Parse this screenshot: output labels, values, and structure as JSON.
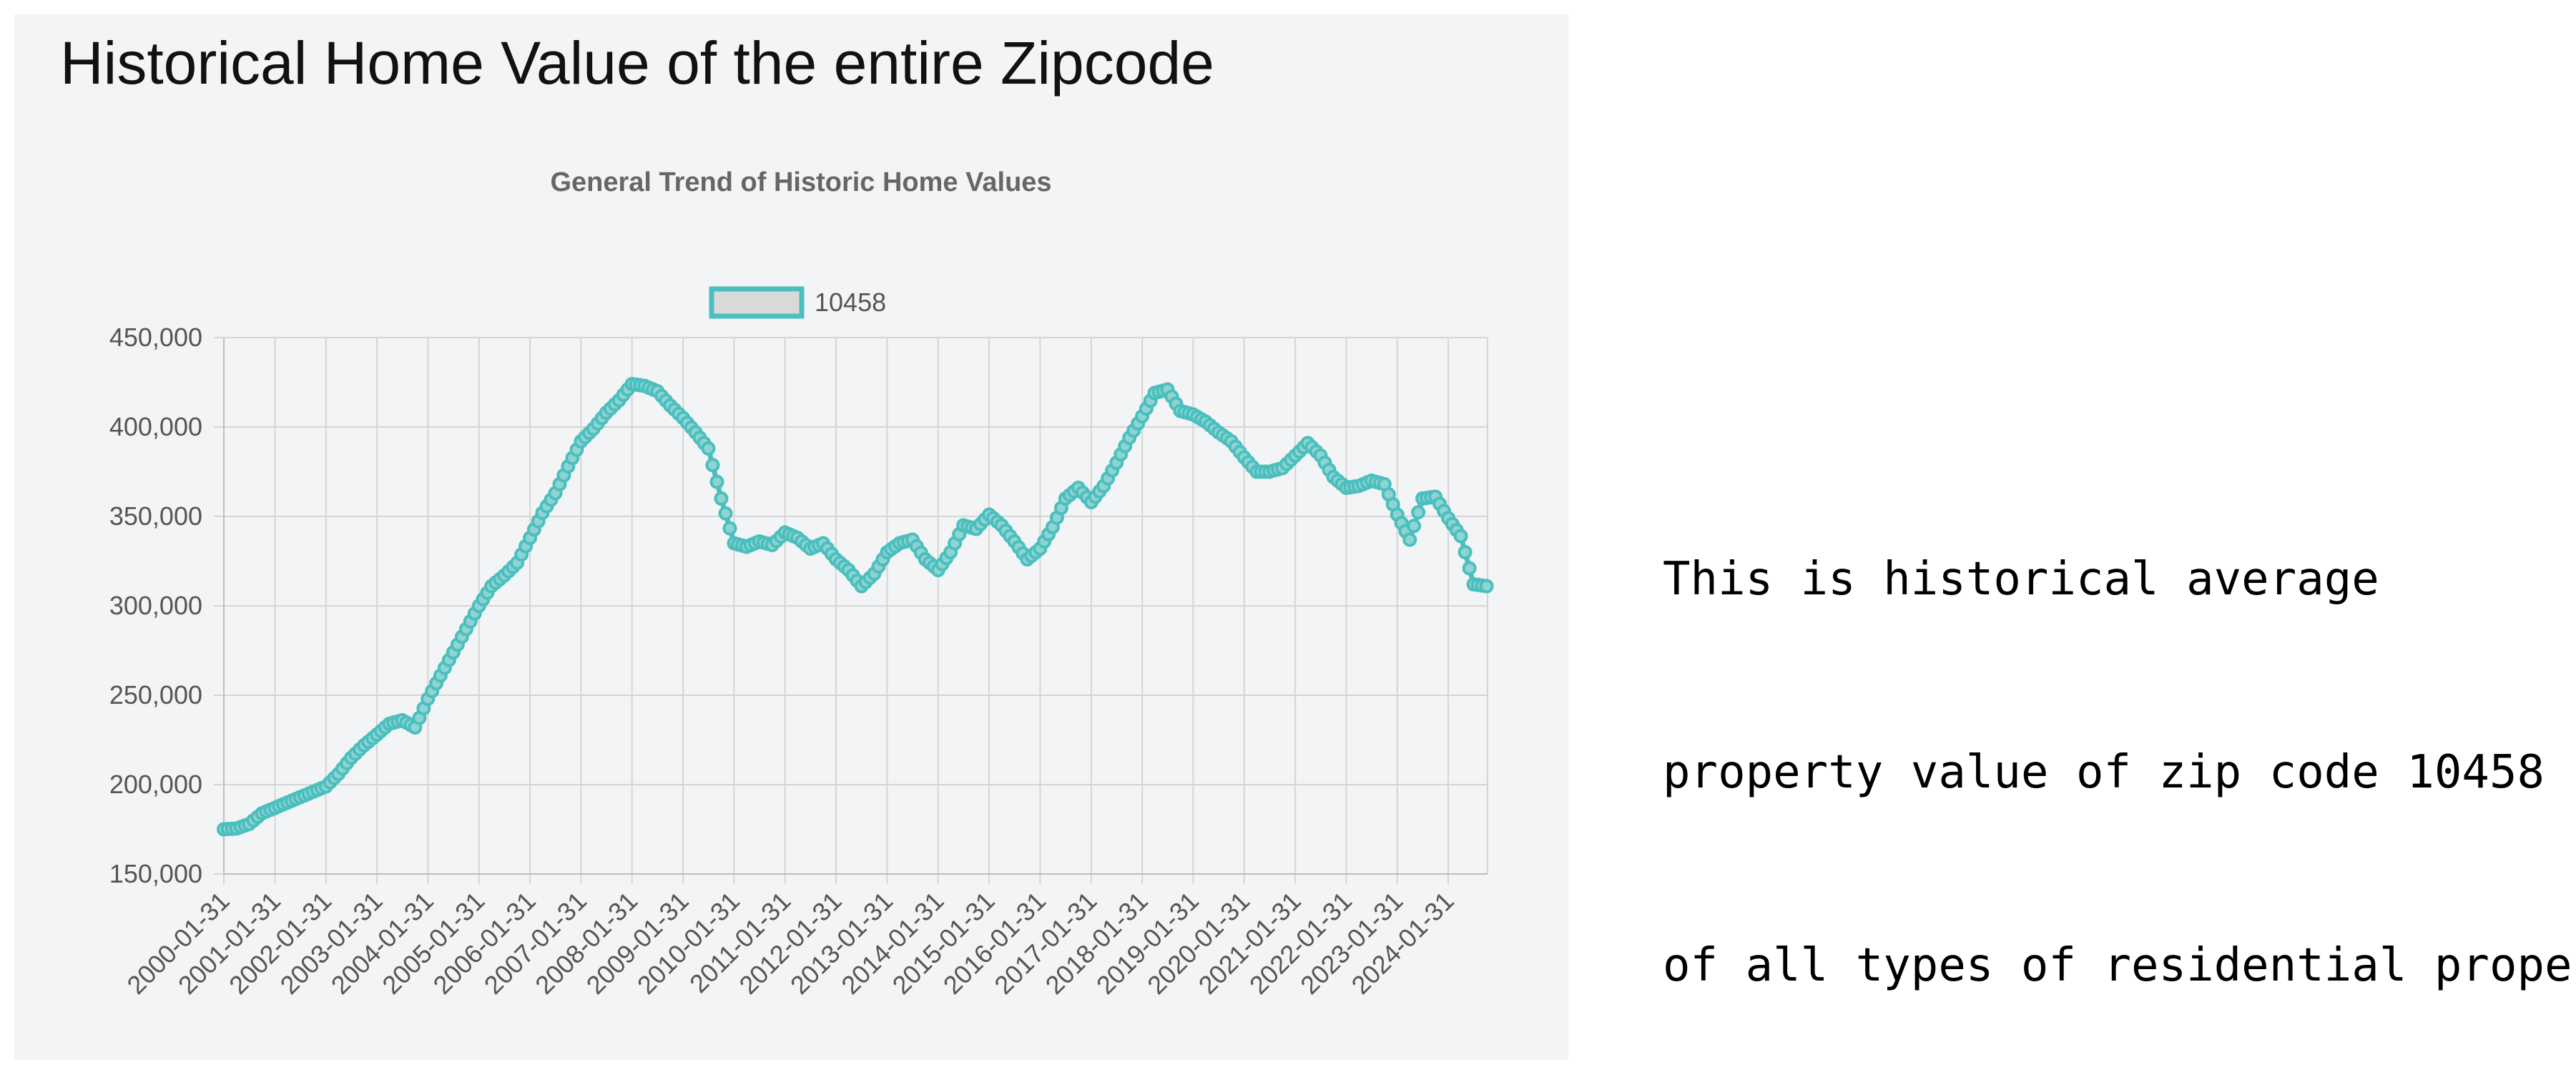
{
  "page_title": "Historical Home Value of the entire Zipcode",
  "annotation": {
    "lines": [
      "This is historical average",
      "property value of zip code 10458",
      "of all types of residential property"
    ]
  },
  "colors": {
    "series": "#4bbfbe",
    "legend_fill": "#d9d9d9",
    "grid": "#d5d5d5"
  },
  "chart_data": {
    "type": "line",
    "title": "General Trend of Historic Home Values",
    "xlabel": "",
    "ylabel": "",
    "ylim": [
      150000,
      450000
    ],
    "y_ticks": [
      "450,000",
      "400,000",
      "350,000",
      "300,000",
      "250,000",
      "200,000",
      "150,000"
    ],
    "x_ticks": [
      "2000-01-31",
      "2001-01-31",
      "2002-01-31",
      "2003-01-31",
      "2004-01-31",
      "2005-01-31",
      "2006-01-31",
      "2007-01-31",
      "2008-01-31",
      "2009-01-31",
      "2010-01-31",
      "2011-01-31",
      "2012-01-31",
      "2013-01-31",
      "2014-01-31",
      "2015-01-31",
      "2016-01-31",
      "2017-01-31",
      "2018-01-31",
      "2019-01-31",
      "2020-01-31",
      "2021-01-31",
      "2022-01-31",
      "2023-01-31",
      "2024-01-31"
    ],
    "grid": true,
    "legend_position": "top",
    "series": [
      {
        "name": "10458",
        "points": [
          [
            "2000-01-31",
            175000
          ],
          [
            "2000-04-30",
            175500
          ],
          [
            "2000-07-31",
            178000
          ],
          [
            "2000-10-31",
            184000
          ],
          [
            "2001-01-31",
            187000
          ],
          [
            "2001-04-30",
            190000
          ],
          [
            "2001-07-31",
            193000
          ],
          [
            "2001-10-31",
            196000
          ],
          [
            "2002-01-31",
            199000
          ],
          [
            "2002-04-30",
            206000
          ],
          [
            "2002-07-31",
            215000
          ],
          [
            "2002-10-31",
            222000
          ],
          [
            "2003-01-31",
            228000
          ],
          [
            "2003-04-30",
            234000
          ],
          [
            "2003-07-31",
            236000
          ],
          [
            "2003-10-31",
            232000
          ],
          [
            "2004-01-31",
            248000
          ],
          [
            "2004-04-30",
            261000
          ],
          [
            "2004-07-31",
            274000
          ],
          [
            "2004-10-31",
            287000
          ],
          [
            "2005-01-31",
            300000
          ],
          [
            "2005-04-30",
            311000
          ],
          [
            "2005-07-31",
            317000
          ],
          [
            "2005-10-31",
            324000
          ],
          [
            "2006-01-31",
            338000
          ],
          [
            "2006-04-30",
            352000
          ],
          [
            "2006-07-31",
            363000
          ],
          [
            "2006-10-31",
            378000
          ],
          [
            "2007-01-31",
            392000
          ],
          [
            "2007-04-30",
            399000
          ],
          [
            "2007-07-31",
            408000
          ],
          [
            "2007-10-31",
            415000
          ],
          [
            "2008-01-31",
            424000
          ],
          [
            "2008-04-30",
            423000
          ],
          [
            "2008-07-31",
            420000
          ],
          [
            "2008-10-31",
            412000
          ],
          [
            "2009-01-31",
            405000
          ],
          [
            "2009-04-30",
            397000
          ],
          [
            "2009-07-31",
            388000
          ],
          [
            "2009-10-31",
            360000
          ],
          [
            "2010-01-31",
            335000
          ],
          [
            "2010-04-30",
            333000
          ],
          [
            "2010-07-31",
            336000
          ],
          [
            "2010-10-31",
            334000
          ],
          [
            "2011-01-31",
            341000
          ],
          [
            "2011-04-30",
            338000
          ],
          [
            "2011-07-31",
            332000
          ],
          [
            "2011-10-31",
            335000
          ],
          [
            "2012-01-31",
            326000
          ],
          [
            "2012-04-30",
            320000
          ],
          [
            "2012-07-31",
            311000
          ],
          [
            "2012-10-31",
            318000
          ],
          [
            "2013-01-31",
            330000
          ],
          [
            "2013-04-30",
            335000
          ],
          [
            "2013-07-31",
            337000
          ],
          [
            "2013-10-31",
            326000
          ],
          [
            "2014-01-31",
            320000
          ],
          [
            "2014-04-30",
            330000
          ],
          [
            "2014-07-31",
            345000
          ],
          [
            "2014-10-31",
            343000
          ],
          [
            "2015-01-31",
            351000
          ],
          [
            "2015-04-30",
            345000
          ],
          [
            "2015-07-31",
            336000
          ],
          [
            "2015-10-31",
            326000
          ],
          [
            "2016-01-31",
            332000
          ],
          [
            "2016-04-30",
            344000
          ],
          [
            "2016-07-31",
            360000
          ],
          [
            "2016-10-31",
            366000
          ],
          [
            "2017-01-31",
            358000
          ],
          [
            "2017-04-30",
            367000
          ],
          [
            "2017-07-31",
            380000
          ],
          [
            "2017-10-31",
            394000
          ],
          [
            "2018-01-31",
            406000
          ],
          [
            "2018-04-30",
            419000
          ],
          [
            "2018-07-31",
            421000
          ],
          [
            "2018-10-31",
            409000
          ],
          [
            "2019-01-31",
            407000
          ],
          [
            "2019-04-30",
            403000
          ],
          [
            "2019-07-31",
            397000
          ],
          [
            "2019-10-31",
            392000
          ],
          [
            "2020-01-31",
            383000
          ],
          [
            "2020-04-30",
            375000
          ],
          [
            "2020-07-31",
            375000
          ],
          [
            "2020-10-31",
            377000
          ],
          [
            "2021-01-31",
            384000
          ],
          [
            "2021-04-30",
            391000
          ],
          [
            "2021-07-31",
            384000
          ],
          [
            "2021-10-31",
            372000
          ],
          [
            "2022-01-31",
            366000
          ],
          [
            "2022-04-30",
            367000
          ],
          [
            "2022-07-31",
            370000
          ],
          [
            "2022-10-31",
            368000
          ],
          [
            "2023-01-31",
            351000
          ],
          [
            "2023-04-30",
            337000
          ],
          [
            "2023-07-31",
            360000
          ],
          [
            "2023-10-31",
            361000
          ],
          [
            "2024-01-31",
            349000
          ],
          [
            "2024-04-30",
            339000
          ],
          [
            "2024-07-31",
            312000
          ],
          [
            "2024-10-31",
            311000
          ]
        ]
      }
    ]
  }
}
